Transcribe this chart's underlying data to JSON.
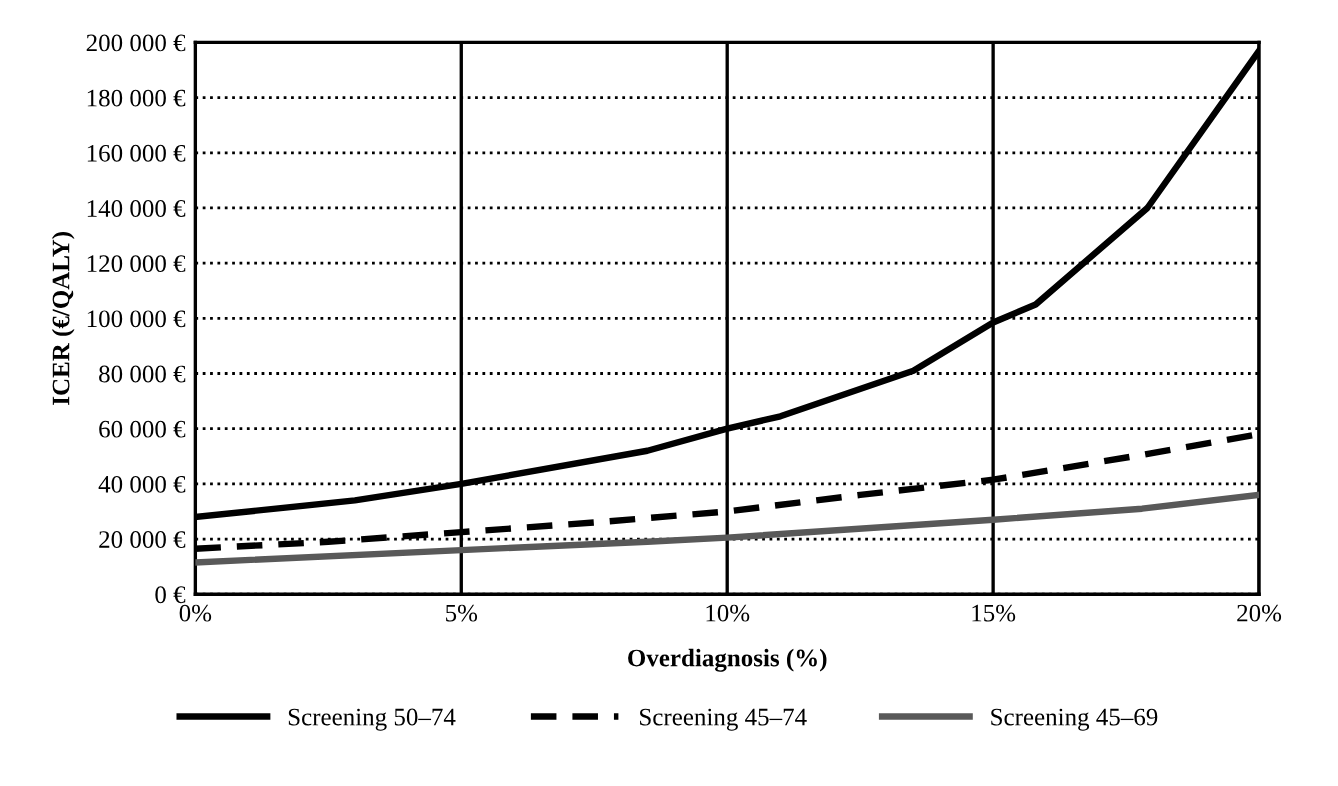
{
  "chart_data": {
    "type": "line",
    "xlabel": "Overdiagnosis (%)",
    "ylabel": "ICER (€/QALY)",
    "xlim": [
      0,
      20
    ],
    "ylim": [
      0,
      200000
    ],
    "xticks": [
      {
        "value": 0,
        "label": "0%"
      },
      {
        "value": 5,
        "label": "5%"
      },
      {
        "value": 10,
        "label": "10%"
      },
      {
        "value": 15,
        "label": "15%"
      },
      {
        "value": 20,
        "label": "20%"
      }
    ],
    "yticks": [
      {
        "value": 0,
        "label": "0 €"
      },
      {
        "value": 20000,
        "label": "20 000 €"
      },
      {
        "value": 40000,
        "label": "40 000 €"
      },
      {
        "value": 60000,
        "label": "60 000 €"
      },
      {
        "value": 80000,
        "label": "80 000 €"
      },
      {
        "value": 100000,
        "label": "100 000 €"
      },
      {
        "value": 120000,
        "label": "120 000 €"
      },
      {
        "value": 140000,
        "label": "140 000 €"
      },
      {
        "value": 160000,
        "label": "160 000 €"
      },
      {
        "value": 180000,
        "label": "180 000 €"
      },
      {
        "value": 200000,
        "label": "200 000 €"
      }
    ],
    "grid": true,
    "legend": "bottom",
    "marker": "none",
    "series": [
      {
        "name": "Screening 50–74",
        "color": "#000000",
        "line_style": "solid",
        "x": [
          0,
          3,
          5,
          8.5,
          10,
          11,
          13.5,
          15,
          15.8,
          17.9,
          20
        ],
        "values": [
          28000,
          34000,
          40000,
          52000,
          60000,
          64500,
          81000,
          98500,
          105000,
          140000,
          197000
        ]
      },
      {
        "name": "Screening 45–74",
        "color": "#000000",
        "line_style": "dashed",
        "x": [
          0,
          2.5,
          5,
          7.5,
          10,
          12.5,
          15,
          17.8,
          20
        ],
        "values": [
          16500,
          19000,
          22500,
          26000,
          30000,
          36000,
          41500,
          50500,
          58000
        ]
      },
      {
        "name": "Screening 45–69",
        "color": "#595959",
        "line_style": "solid",
        "x": [
          0,
          5,
          8.5,
          10,
          15,
          17.8,
          20
        ],
        "values": [
          11500,
          16000,
          19000,
          20500,
          27000,
          31000,
          36000
        ]
      }
    ]
  }
}
